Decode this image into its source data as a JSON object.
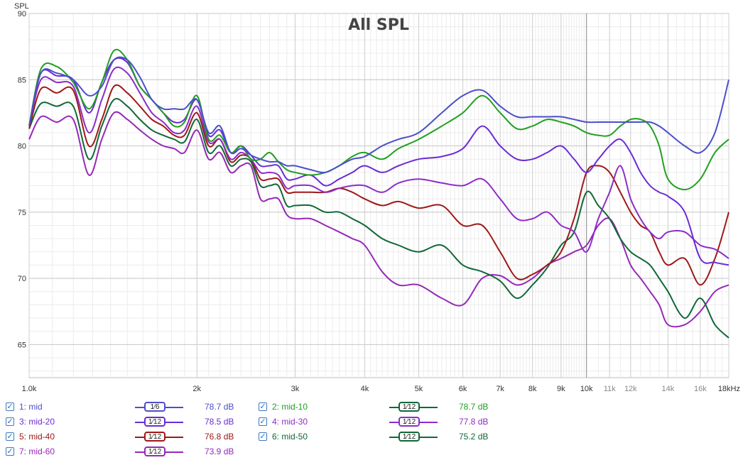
{
  "chart_data": {
    "type": "line",
    "title": "All SPL",
    "ylabel": "SPL",
    "xlabel": "",
    "x_scale": "log",
    "xlim": [
      1000,
      18000
    ],
    "ylim": [
      62.5,
      90
    ],
    "y_ticks": [
      65,
      70,
      75,
      80,
      85,
      90
    ],
    "x_ticks": [
      {
        "v": 1000,
        "label": "1.0k"
      },
      {
        "v": 2000,
        "label": "2k"
      },
      {
        "v": 3000,
        "label": "3k"
      },
      {
        "v": 4000,
        "label": "4k"
      },
      {
        "v": 5000,
        "label": "5k"
      },
      {
        "v": 6000,
        "label": "6k"
      },
      {
        "v": 7000,
        "label": "7k"
      },
      {
        "v": 8000,
        "label": "8k"
      },
      {
        "v": 9000,
        "label": "9k"
      },
      {
        "v": 10000,
        "label": "10k"
      },
      {
        "v": 11000,
        "label": "11k"
      },
      {
        "v": 12000,
        "label": "12k"
      },
      {
        "v": 14000,
        "label": "14k"
      },
      {
        "v": 16000,
        "label": "16k"
      },
      {
        "v": 18000,
        "label": "18kHz"
      }
    ],
    "series": [
      {
        "name": "1: mid",
        "color": "#4b4fc9",
        "smoothing": "1/6",
        "level": "78.7 dB",
        "x": [
          1000,
          1050,
          1120,
          1200,
          1280,
          1350,
          1420,
          1500,
          1580,
          1660,
          1740,
          1820,
          1900,
          2000,
          2100,
          2200,
          2300,
          2400,
          2500,
          2600,
          2700,
          2800,
          2900,
          3000,
          3200,
          3400,
          3600,
          3800,
          4000,
          4300,
          4600,
          5000,
          5500,
          6000,
          6500,
          7000,
          7500,
          8000,
          8500,
          9000,
          9500,
          10000,
          10500,
          11000,
          11500,
          12000,
          12500,
          13000,
          13500,
          14000,
          15000,
          16000,
          17000,
          18000
        ],
        "y": [
          81.5,
          85.5,
          85.5,
          85.0,
          83.8,
          84.5,
          86.5,
          86.5,
          85.2,
          83.5,
          82.8,
          82.8,
          82.8,
          83.5,
          81.0,
          81.5,
          79.5,
          79.8,
          79.3,
          79.0,
          78.8,
          78.8,
          78.5,
          78.5,
          78.2,
          78.0,
          78.5,
          79.0,
          79.2,
          80.0,
          80.5,
          81.0,
          82.5,
          83.8,
          84.2,
          83.0,
          82.2,
          82.2,
          82.2,
          82.2,
          82.0,
          81.8,
          81.8,
          81.8,
          81.8,
          81.8,
          81.8,
          81.8,
          81.5,
          81.0,
          80.0,
          79.5,
          81.0,
          85.0
        ]
      },
      {
        "name": "2: mid-10",
        "color": "#20a020",
        "smoothing": "1/12",
        "level": "78.7 dB",
        "x": [
          1000,
          1050,
          1120,
          1200,
          1280,
          1350,
          1420,
          1500,
          1580,
          1660,
          1740,
          1820,
          1900,
          2000,
          2100,
          2200,
          2300,
          2400,
          2500,
          2600,
          2700,
          2800,
          2900,
          3000,
          3200,
          3400,
          3600,
          3800,
          4000,
          4300,
          4600,
          5000,
          5500,
          6000,
          6500,
          7000,
          7500,
          8000,
          8500,
          9000,
          9500,
          10000,
          10500,
          11000,
          11500,
          12000,
          12500,
          13000,
          13500,
          14000,
          15000,
          16000,
          17000,
          18000
        ],
        "y": [
          81.5,
          85.8,
          86.0,
          84.8,
          82.8,
          84.8,
          87.2,
          86.5,
          84.5,
          83.5,
          82.5,
          81.5,
          81.8,
          83.8,
          80.5,
          80.8,
          79.5,
          80.0,
          79.0,
          79.0,
          79.5,
          78.8,
          78.2,
          78.0,
          77.8,
          78.0,
          78.5,
          79.2,
          79.5,
          79.0,
          79.8,
          80.5,
          81.5,
          82.5,
          83.8,
          82.5,
          81.3,
          81.5,
          82.0,
          81.8,
          81.5,
          81.0,
          80.8,
          80.8,
          81.5,
          82.0,
          82.0,
          81.5,
          80.0,
          77.5,
          76.7,
          77.5,
          79.5,
          80.5
        ]
      },
      {
        "name": "3: mid-20",
        "color": "#6a2bd6",
        "smoothing": "1/12",
        "level": "78.5 dB",
        "x": [
          1000,
          1050,
          1120,
          1200,
          1280,
          1350,
          1420,
          1500,
          1580,
          1660,
          1740,
          1820,
          1900,
          2000,
          2100,
          2200,
          2300,
          2400,
          2500,
          2600,
          2700,
          2800,
          2900,
          3000,
          3200,
          3400,
          3600,
          3800,
          4000,
          4300,
          4600,
          5000,
          5500,
          6000,
          6500,
          7000,
          7500,
          8000,
          8500,
          9000,
          9500,
          10000,
          10500,
          11000,
          11500,
          12000,
          12500,
          13000,
          13500,
          14000,
          15000,
          16000,
          17000,
          18000
        ],
        "y": [
          81.5,
          85.5,
          85.3,
          85.0,
          82.5,
          84.8,
          86.5,
          86.3,
          84.5,
          83.5,
          82.5,
          81.8,
          82.0,
          83.5,
          80.8,
          81.2,
          79.5,
          80.0,
          79.3,
          78.5,
          78.5,
          78.5,
          77.5,
          77.5,
          77.8,
          77.0,
          77.5,
          78.0,
          78.5,
          78.0,
          78.5,
          79.0,
          79.2,
          79.8,
          81.5,
          80.0,
          79.0,
          79.0,
          79.5,
          80.0,
          79.0,
          78.0,
          79.0,
          80.0,
          80.5,
          79.5,
          78.0,
          77.0,
          76.5,
          76.2,
          75.0,
          71.5,
          71.2,
          71.0
        ]
      },
      {
        "name": "4: mid-30",
        "color": "#8e2cc8",
        "smoothing": "1/12",
        "level": "77.8 dB",
        "x": [
          1000,
          1050,
          1120,
          1200,
          1280,
          1350,
          1420,
          1500,
          1580,
          1660,
          1740,
          1820,
          1900,
          2000,
          2100,
          2200,
          2300,
          2400,
          2500,
          2600,
          2700,
          2800,
          2900,
          3000,
          3200,
          3400,
          3600,
          3800,
          4000,
          4300,
          4600,
          5000,
          5500,
          6000,
          6500,
          7000,
          7500,
          8000,
          8500,
          9000,
          9500,
          10000,
          10500,
          11000,
          11500,
          12000,
          12500,
          13000,
          13500,
          14000,
          15000,
          16000,
          17000,
          18000
        ],
        "y": [
          81.5,
          85.0,
          84.8,
          84.5,
          81.0,
          83.5,
          85.8,
          85.5,
          84.0,
          82.5,
          81.8,
          81.0,
          81.2,
          83.0,
          80.3,
          80.5,
          79.0,
          79.5,
          79.0,
          78.0,
          78.0,
          77.8,
          76.8,
          77.0,
          77.0,
          76.5,
          76.8,
          77.0,
          77.0,
          76.5,
          77.2,
          77.5,
          77.2,
          77.0,
          77.5,
          76.0,
          74.5,
          74.5,
          75.0,
          74.0,
          73.5,
          72.0,
          74.5,
          76.5,
          78.5,
          76.0,
          74.5,
          73.5,
          73.0,
          73.5,
          73.5,
          72.5,
          72.2,
          71.5
        ]
      },
      {
        "name": "5: mid-40",
        "color": "#a01818",
        "smoothing": "1/12",
        "level": "76.8 dB",
        "x": [
          1000,
          1050,
          1120,
          1200,
          1280,
          1350,
          1420,
          1500,
          1580,
          1660,
          1740,
          1820,
          1900,
          2000,
          2100,
          2200,
          2300,
          2400,
          2500,
          2600,
          2700,
          2800,
          2900,
          3000,
          3200,
          3400,
          3600,
          3800,
          4000,
          4300,
          4600,
          5000,
          5500,
          6000,
          6500,
          7000,
          7500,
          8000,
          8500,
          9000,
          9500,
          10000,
          10500,
          11000,
          11500,
          12000,
          12500,
          13000,
          13500,
          14000,
          15000,
          16000,
          17000,
          18000
        ],
        "y": [
          81.3,
          84.3,
          84.0,
          84.2,
          80.0,
          82.0,
          84.5,
          84.0,
          83.0,
          82.0,
          81.5,
          80.8,
          80.8,
          82.5,
          80.0,
          80.5,
          78.8,
          79.3,
          79.0,
          77.5,
          77.5,
          77.5,
          76.5,
          76.5,
          76.5,
          76.5,
          76.8,
          76.5,
          76.0,
          75.5,
          75.8,
          75.3,
          75.5,
          74.0,
          74.0,
          72.0,
          70.0,
          70.3,
          71.0,
          72.0,
          74.5,
          78.0,
          78.5,
          78.0,
          76.5,
          75.0,
          74.0,
          73.5,
          72.0,
          71.0,
          71.5,
          69.5,
          71.5,
          75.0
        ]
      },
      {
        "name": "6: mid-50",
        "color": "#106838",
        "smoothing": "1/12",
        "level": "75.2 dB",
        "x": [
          1000,
          1050,
          1120,
          1200,
          1280,
          1350,
          1420,
          1500,
          1580,
          1660,
          1740,
          1820,
          1900,
          2000,
          2100,
          2200,
          2300,
          2400,
          2500,
          2600,
          2700,
          2800,
          2900,
          3000,
          3200,
          3400,
          3600,
          3800,
          4000,
          4300,
          4600,
          5000,
          5500,
          6000,
          6500,
          7000,
          7500,
          8000,
          8500,
          9000,
          9500,
          10000,
          10500,
          11000,
          11500,
          12000,
          12500,
          13000,
          13500,
          14000,
          15000,
          16000,
          17000,
          18000
        ],
        "y": [
          81.3,
          83.2,
          83.0,
          83.0,
          79.0,
          81.5,
          83.5,
          83.0,
          82.0,
          81.2,
          80.8,
          80.5,
          80.3,
          82.0,
          79.5,
          80.0,
          78.5,
          79.0,
          78.8,
          77.0,
          77.0,
          77.0,
          75.5,
          75.5,
          75.5,
          75.0,
          75.0,
          74.5,
          74.0,
          73.0,
          72.5,
          72.0,
          72.5,
          71.0,
          70.5,
          69.8,
          68.5,
          69.5,
          70.8,
          72.5,
          73.5,
          76.5,
          75.5,
          74.5,
          73.0,
          72.0,
          71.5,
          71.0,
          70.0,
          69.0,
          67.0,
          68.5,
          66.5,
          65.5
        ]
      },
      {
        "name": "7: mid-60",
        "color": "#9628b8",
        "smoothing": "1/12",
        "level": "73.9 dB",
        "x": [
          1000,
          1050,
          1120,
          1200,
          1280,
          1350,
          1420,
          1500,
          1580,
          1660,
          1740,
          1820,
          1900,
          2000,
          2100,
          2200,
          2300,
          2400,
          2500,
          2600,
          2700,
          2800,
          2900,
          3000,
          3200,
          3400,
          3600,
          3800,
          4000,
          4300,
          4600,
          5000,
          5500,
          6000,
          6500,
          7000,
          7500,
          8000,
          8500,
          9000,
          9500,
          10000,
          10500,
          11000,
          11500,
          12000,
          12500,
          13000,
          13500,
          14000,
          15000,
          16000,
          17000,
          18000
        ],
        "y": [
          80.5,
          82.2,
          81.8,
          82.0,
          77.8,
          80.5,
          82.5,
          82.0,
          81.2,
          80.5,
          80.0,
          79.8,
          79.5,
          81.2,
          79.0,
          79.5,
          78.0,
          78.5,
          78.5,
          76.0,
          76.0,
          76.0,
          74.8,
          74.5,
          74.5,
          74.0,
          73.5,
          73.0,
          72.5,
          70.5,
          69.5,
          69.5,
          68.5,
          68.0,
          70.0,
          70.2,
          69.5,
          70.0,
          71.0,
          71.5,
          72.0,
          72.5,
          74.0,
          74.5,
          73.0,
          71.0,
          70.0,
          69.0,
          68.0,
          66.5,
          66.5,
          67.5,
          69.0,
          69.5
        ]
      }
    ]
  },
  "legend": {
    "items": [
      {
        "label": "1: mid",
        "smoothing_num": "1",
        "smoothing_den": "6",
        "level": "78.7 dB",
        "color": "#4b4fc9"
      },
      {
        "label": "2: mid-10",
        "smoothing_num": "1",
        "smoothing_den": "12",
        "level": "78.7 dB",
        "color": "#20a020"
      },
      {
        "label": "3: mid-20",
        "smoothing_num": "1",
        "smoothing_den": "12",
        "level": "78.5 dB",
        "color": "#6a2bd6"
      },
      {
        "label": "4: mid-30",
        "smoothing_num": "1",
        "smoothing_den": "12",
        "level": "77.8 dB",
        "color": "#8e2cc8"
      },
      {
        "label": "5: mid-40",
        "smoothing_num": "1",
        "smoothing_den": "12",
        "level": "76.8 dB",
        "color": "#a01818"
      },
      {
        "label": "6: mid-50",
        "smoothing_num": "1",
        "smoothing_den": "12",
        "level": "75.2 dB",
        "color": "#106838"
      },
      {
        "label": "7: mid-60",
        "smoothing_num": "1",
        "smoothing_den": "12",
        "level": "73.9 dB",
        "color": "#9628b8"
      }
    ],
    "check_glyph": "✓"
  }
}
